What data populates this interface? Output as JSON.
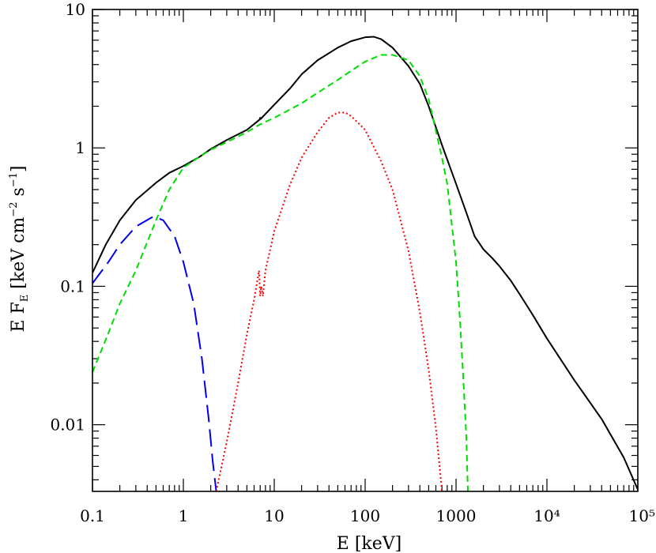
{
  "chart_data": {
    "type": "line",
    "x_scale": "log",
    "y_scale": "log",
    "xlim": [
      0.1,
      100000
    ],
    "ylim": [
      0.0033,
      10
    ],
    "xlabel": "E [keV]",
    "ylabel": {
      "prefix": "E F",
      "subscript": "E",
      "mid": " [keV cm",
      "sup1": "−2",
      "mid2": " s",
      "sup2": "−1",
      "suffix": "]"
    },
    "x_ticks": [
      {
        "value": 0.1,
        "label": "0.1"
      },
      {
        "value": 1,
        "label": "1"
      },
      {
        "value": 10,
        "label": "10"
      },
      {
        "value": 100,
        "label": "100"
      },
      {
        "value": 1000,
        "label": "1000"
      },
      {
        "value": 10000,
        "label": "10⁴"
      },
      {
        "value": 100000,
        "label": "10⁵"
      }
    ],
    "y_ticks": [
      {
        "value": 0.01,
        "label": "0.01"
      },
      {
        "value": 0.1,
        "label": "0.1"
      },
      {
        "value": 1,
        "label": "1"
      },
      {
        "value": 10,
        "label": "10"
      }
    ],
    "grid": false,
    "series": [
      {
        "color": "#000000",
        "style": "solid",
        "points": [
          [
            0.1,
            0.125
          ],
          [
            0.14,
            0.2
          ],
          [
            0.2,
            0.3
          ],
          [
            0.3,
            0.42
          ],
          [
            0.5,
            0.56
          ],
          [
            0.7,
            0.66
          ],
          [
            1.0,
            0.74
          ],
          [
            1.5,
            0.86
          ],
          [
            2.0,
            0.98
          ],
          [
            3.0,
            1.14
          ],
          [
            5.0,
            1.35
          ],
          [
            6.9,
            1.6
          ],
          [
            7.0,
            1.65
          ],
          [
            7.1,
            1.62
          ],
          [
            10,
            2.05
          ],
          [
            15,
            2.7
          ],
          [
            20,
            3.4
          ],
          [
            30,
            4.3
          ],
          [
            50,
            5.3
          ],
          [
            70,
            5.9
          ],
          [
            100,
            6.3
          ],
          [
            125,
            6.35
          ],
          [
            150,
            6.1
          ],
          [
            200,
            5.3
          ],
          [
            300,
            3.9
          ],
          [
            400,
            2.9
          ],
          [
            500,
            2.0
          ],
          [
            700,
            1.05
          ],
          [
            1000,
            0.55
          ],
          [
            1300,
            0.34
          ],
          [
            1600,
            0.23
          ],
          [
            2000,
            0.185
          ],
          [
            2500,
            0.16
          ],
          [
            3000,
            0.14
          ],
          [
            4000,
            0.11
          ],
          [
            5000,
            0.088
          ],
          [
            7000,
            0.062
          ],
          [
            10000,
            0.042
          ],
          [
            20000,
            0.021
          ],
          [
            40000,
            0.011
          ],
          [
            70000,
            0.0058
          ],
          [
            100000,
            0.0034
          ]
        ]
      },
      {
        "color": "#00dd00",
        "style": "dashed",
        "points": [
          [
            0.1,
            0.024
          ],
          [
            0.15,
            0.046
          ],
          [
            0.2,
            0.075
          ],
          [
            0.3,
            0.13
          ],
          [
            0.5,
            0.3
          ],
          [
            0.7,
            0.5
          ],
          [
            1.0,
            0.72
          ],
          [
            1.5,
            0.86
          ],
          [
            2.0,
            0.97
          ],
          [
            3.0,
            1.1
          ],
          [
            5.0,
            1.3
          ],
          [
            7.0,
            1.48
          ],
          [
            10,
            1.65
          ],
          [
            20,
            2.1
          ],
          [
            30,
            2.5
          ],
          [
            50,
            3.1
          ],
          [
            70,
            3.6
          ],
          [
            100,
            4.2
          ],
          [
            150,
            4.7
          ],
          [
            200,
            4.7
          ],
          [
            300,
            4.3
          ],
          [
            400,
            3.3
          ],
          [
            500,
            2.25
          ],
          [
            700,
            0.85
          ],
          [
            800,
            0.55
          ],
          [
            1000,
            0.15
          ],
          [
            1100,
            0.06
          ],
          [
            1200,
            0.022
          ],
          [
            1300,
            0.008
          ],
          [
            1350,
            0.0033
          ]
        ]
      },
      {
        "color": "#0000ee",
        "style": "longdash",
        "points": [
          [
            0.1,
            0.105
          ],
          [
            0.15,
            0.15
          ],
          [
            0.2,
            0.2
          ],
          [
            0.3,
            0.27
          ],
          [
            0.45,
            0.315
          ],
          [
            0.5,
            0.315
          ],
          [
            0.6,
            0.3
          ],
          [
            0.8,
            0.23
          ],
          [
            1.0,
            0.15
          ],
          [
            1.3,
            0.075
          ],
          [
            1.6,
            0.03
          ],
          [
            1.9,
            0.011
          ],
          [
            2.1,
            0.0055
          ],
          [
            2.3,
            0.0033
          ]
        ]
      },
      {
        "color": "#ff0000",
        "style": "dotted",
        "points": [
          [
            2.3,
            0.0033
          ],
          [
            3.0,
            0.0075
          ],
          [
            4.0,
            0.02
          ],
          [
            5.0,
            0.045
          ],
          [
            6.0,
            0.08
          ],
          [
            6.8,
            0.13
          ],
          [
            7.0,
            0.085
          ],
          [
            7.2,
            0.1
          ],
          [
            7.5,
            0.085
          ],
          [
            8.0,
            0.13
          ],
          [
            10,
            0.25
          ],
          [
            15,
            0.55
          ],
          [
            20,
            0.85
          ],
          [
            30,
            1.3
          ],
          [
            40,
            1.65
          ],
          [
            50,
            1.8
          ],
          [
            60,
            1.8
          ],
          [
            70,
            1.7
          ],
          [
            100,
            1.35
          ],
          [
            150,
            0.8
          ],
          [
            200,
            0.5
          ],
          [
            300,
            0.18
          ],
          [
            400,
            0.065
          ],
          [
            500,
            0.025
          ],
          [
            600,
            0.0095
          ],
          [
            700,
            0.0033
          ]
        ]
      }
    ]
  }
}
